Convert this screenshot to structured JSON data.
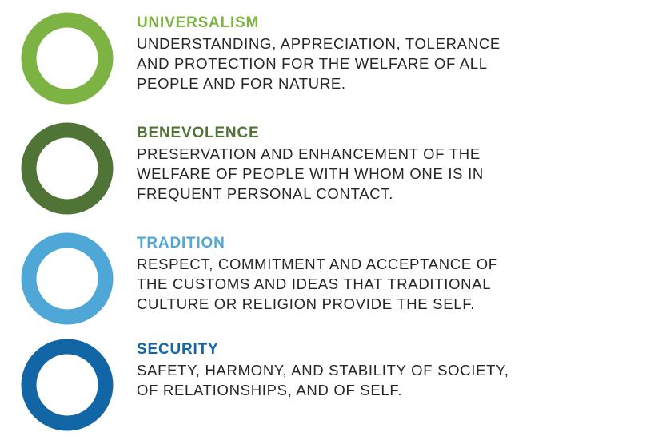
{
  "values": [
    {
      "title": "UNIVERSALISM",
      "lines": [
        "UNDERSTANDING, APPRECIATION, TOLERANCE",
        "AND PROTECTION FOR THE WELFARE OF ALL",
        "PEOPLE AND FOR NATURE."
      ],
      "color": "#7cb342"
    },
    {
      "title": "BENEVOLENCE",
      "lines": [
        "PRESERVATION AND ENHANCEMENT OF THE",
        "WELFARE OF PEOPLE WITH WHOM ONE IS IN",
        "FREQUENT PERSONAL CONTACT."
      ],
      "color": "#4f7436"
    },
    {
      "title": "TRADITION",
      "lines": [
        "RESPECT, COMMITMENT AND ACCEPTANCE OF",
        "THE CUSTOMS AND IDEAS THAT TRADITIONAL",
        "CULTURE OR RELIGION PROVIDE THE SELF."
      ],
      "color": "#4fa7d8"
    },
    {
      "title": "SECURITY",
      "lines": [
        "SAFETY, HARMONY, AND STABILITY OF SOCIETY,",
        "OF RELATIONSHIPS, AND OF SELF."
      ],
      "color": "#1266a6"
    }
  ]
}
